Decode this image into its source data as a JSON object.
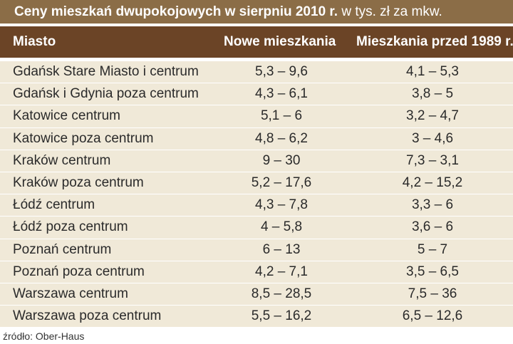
{
  "title": {
    "bold": "Ceny mieszkań dwupokojowych w sierpniu 2010 r.",
    "light": " w tys. zł za mkw."
  },
  "header": {
    "city": "Miasto",
    "new": "Nowe mieszkania",
    "old": "Mieszkania przed 1989 r."
  },
  "rows": [
    {
      "city": "Gdańsk Stare Miasto i centrum",
      "new": "5,3 – 9,6",
      "old": "4,1 – 5,3"
    },
    {
      "city": "Gdańsk i Gdynia poza centrum",
      "new": "4,3 – 6,1",
      "old": "3,8 – 5"
    },
    {
      "city": "Katowice centrum",
      "new": "5,1 – 6",
      "old": "3,2 – 4,7"
    },
    {
      "city": "Katowice poza centrum",
      "new": "4,8 – 6,2",
      "old": "3 – 4,6"
    },
    {
      "city": "Kraków centrum",
      "new": "9 – 30",
      "old": "7,3 – 3,1"
    },
    {
      "city": "Kraków poza centrum",
      "new": "5,2 – 17,6",
      "old": "4,2 – 15,2"
    },
    {
      "city": "Łódź centrum",
      "new": "4,3 – 7,8",
      "old": "3,3 – 6"
    },
    {
      "city": "Łódź poza centrum",
      "new": "4 – 5,8",
      "old": "3,6 – 6"
    },
    {
      "city": "Poznań centrum",
      "new": "6 – 13",
      "old": "5 – 7"
    },
    {
      "city": "Poznań poza centrum",
      "new": "4,2 – 7,1",
      "old": "3,5 – 6,5"
    },
    {
      "city": "Warszawa centrum",
      "new": "8,5 – 28,5",
      "old": "7,5 – 36"
    },
    {
      "city": "Warszawa poza centrum",
      "new": "5,5 – 16,2",
      "old": "6,5 – 12,6"
    }
  ],
  "source": "źródło: Ober-Haus",
  "colors": {
    "title_bg": "#8b6d47",
    "header_bg": "#6b4426",
    "row_bg": "#f0e9d8"
  }
}
